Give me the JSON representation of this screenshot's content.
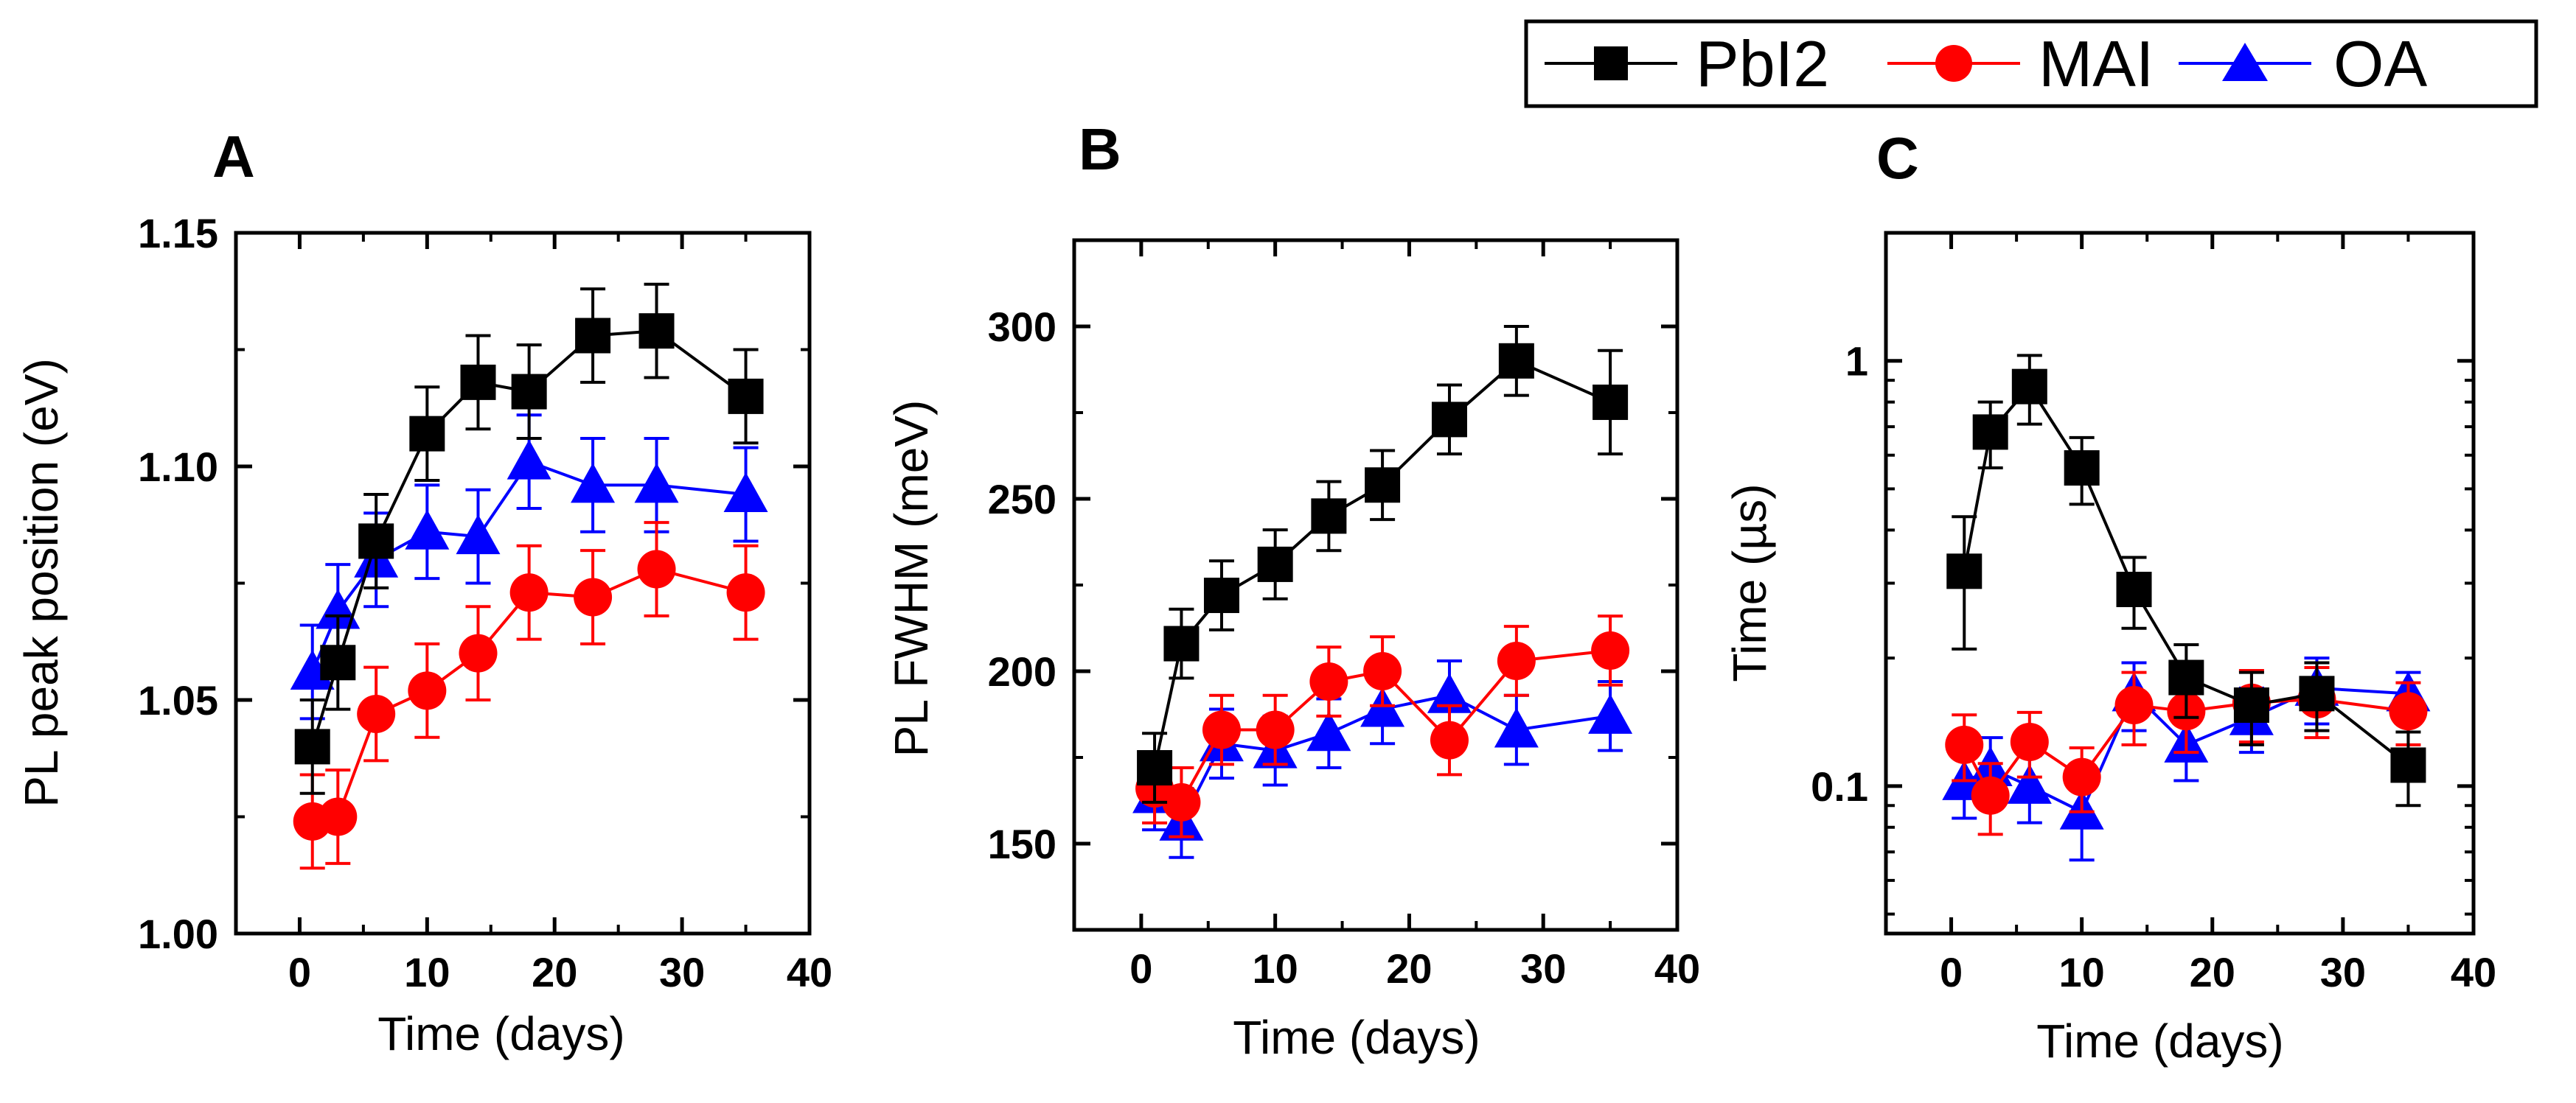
{
  "chart_data": [
    {
      "type": "line",
      "panel": "A",
      "xlabel": "Time (days)",
      "ylabel": "PL peak position (eV)",
      "xlim": [
        -5,
        40
      ],
      "ylim": [
        1.0,
        1.15
      ],
      "yscale": "linear",
      "xticks": [
        0,
        10,
        20,
        30,
        40
      ],
      "xtick_labels": [
        "0",
        "10",
        "20",
        "30",
        "40"
      ],
      "yticks": [
        1.0,
        1.05,
        1.1,
        1.15
      ],
      "ytick_labels": [
        "1.00",
        "1.05",
        "1.10",
        "1.15"
      ],
      "series": [
        {
          "name": "PbI2",
          "x": [
            1,
            3,
            6,
            10,
            14,
            18,
            23,
            28,
            35
          ],
          "y": [
            1.04,
            1.058,
            1.084,
            1.107,
            1.118,
            1.116,
            1.128,
            1.129,
            1.115
          ],
          "err": [
            0.01,
            0.01,
            0.01,
            0.01,
            0.01,
            0.01,
            0.01,
            0.01,
            0.01
          ]
        },
        {
          "name": "MAI",
          "x": [
            1,
            3,
            6,
            10,
            14,
            18,
            23,
            28,
            35
          ],
          "y": [
            1.024,
            1.025,
            1.047,
            1.052,
            1.06,
            1.073,
            1.072,
            1.078,
            1.073
          ],
          "err": [
            0.01,
            0.01,
            0.01,
            0.01,
            0.01,
            0.01,
            0.01,
            0.01,
            0.01
          ]
        },
        {
          "name": "OA",
          "x": [
            1,
            3,
            6,
            10,
            14,
            18,
            23,
            28,
            35
          ],
          "y": [
            1.056,
            1.069,
            1.08,
            1.086,
            1.085,
            1.101,
            1.096,
            1.096,
            1.094
          ],
          "err": [
            0.01,
            0.01,
            0.01,
            0.01,
            0.01,
            0.01,
            0.01,
            0.01,
            0.01
          ]
        }
      ]
    },
    {
      "type": "line",
      "panel": "B",
      "xlabel": "Time (days)",
      "ylabel": "PL FWHM (meV)",
      "xlim": [
        -5,
        40
      ],
      "ylim": [
        125,
        325
      ],
      "yscale": "linear",
      "xticks": [
        0,
        10,
        20,
        30,
        40
      ],
      "xtick_labels": [
        "0",
        "10",
        "20",
        "30",
        "40"
      ],
      "yticks": [
        150,
        200,
        250,
        300
      ],
      "ytick_labels": [
        "150",
        "200",
        "250",
        "300"
      ],
      "series": [
        {
          "name": "PbI2",
          "x": [
            1,
            3,
            6,
            10,
            14,
            18,
            23,
            28,
            35
          ],
          "y": [
            172,
            208,
            222,
            231,
            245,
            254,
            273,
            290,
            278
          ],
          "err": [
            10,
            10,
            10,
            10,
            10,
            10,
            10,
            10,
            15
          ]
        },
        {
          "name": "MAI",
          "x": [
            1,
            3,
            6,
            10,
            14,
            18,
            23,
            28,
            35
          ],
          "y": [
            166,
            162,
            183,
            183,
            197,
            200,
            180,
            203,
            206
          ],
          "err": [
            10,
            10,
            10,
            10,
            10,
            10,
            10,
            10,
            10
          ]
        },
        {
          "name": "OA",
          "x": [
            1,
            3,
            6,
            10,
            14,
            18,
            23,
            28,
            35
          ],
          "y": [
            164,
            156,
            179,
            177,
            182,
            189,
            193,
            183,
            187
          ],
          "err": [
            10,
            10,
            10,
            10,
            10,
            10,
            10,
            10,
            10
          ]
        }
      ]
    },
    {
      "type": "line",
      "panel": "C",
      "xlabel": "Time (days)",
      "ylabel": "Time (µs)",
      "xlim": [
        -5,
        40
      ],
      "ylim": [
        0.045,
        2.0
      ],
      "yscale": "log",
      "xticks": [
        0,
        10,
        20,
        30,
        40
      ],
      "xtick_labels": [
        "0",
        "10",
        "20",
        "30",
        "40"
      ],
      "yticks": [
        0.1,
        1
      ],
      "ytick_labels": [
        "0.1",
        "1"
      ],
      "series": [
        {
          "name": "PbI2",
          "x": [
            1,
            3,
            6,
            10,
            14,
            18,
            23,
            28,
            35
          ],
          "y": [
            0.32,
            0.68,
            0.87,
            0.56,
            0.29,
            0.18,
            0.155,
            0.165,
            0.112
          ],
          "err_lo": [
            0.11,
            0.12,
            0.16,
            0.1,
            0.055,
            0.035,
            0.03,
            0.03,
            0.022
          ],
          "err_hi": [
            0.11,
            0.12,
            0.16,
            0.1,
            0.055,
            0.035,
            0.03,
            0.03,
            0.022
          ]
        },
        {
          "name": "MAI",
          "x": [
            1,
            3,
            6,
            10,
            14,
            18,
            23,
            28,
            35
          ],
          "y": [
            0.125,
            0.095,
            0.127,
            0.105,
            0.155,
            0.15,
            0.157,
            0.16,
            0.15
          ],
          "err_lo": [
            0.022,
            0.018,
            0.022,
            0.018,
            0.03,
            0.03,
            0.03,
            0.03,
            0.025
          ],
          "err_hi": [
            0.022,
            0.018,
            0.022,
            0.018,
            0.03,
            0.03,
            0.03,
            0.03,
            0.025
          ]
        },
        {
          "name": "OA",
          "x": [
            1,
            3,
            6,
            10,
            14,
            18,
            23,
            28,
            35
          ],
          "y": [
            0.102,
            0.11,
            0.1,
            0.087,
            0.165,
            0.125,
            0.145,
            0.17,
            0.165
          ],
          "err_lo": [
            0.018,
            0.02,
            0.018,
            0.02,
            0.03,
            0.022,
            0.025,
            0.03,
            0.02
          ],
          "err_hi": [
            0.018,
            0.02,
            0.018,
            0.02,
            0.03,
            0.022,
            0.025,
            0.03,
            0.02
          ]
        }
      ]
    }
  ],
  "legend": {
    "items": [
      {
        "name": "PbI2",
        "marker": "square",
        "color": "#000000"
      },
      {
        "name": "MAI",
        "marker": "circle",
        "color": "#ff0000"
      },
      {
        "name": "OA",
        "marker": "triangle",
        "color": "#0000ff"
      }
    ]
  },
  "series_styles": {
    "PbI2": {
      "color": "#000000",
      "marker": "square"
    },
    "MAI": {
      "color": "#ff0000",
      "marker": "circle"
    },
    "OA": {
      "color": "#0000ff",
      "marker": "triangle"
    }
  }
}
